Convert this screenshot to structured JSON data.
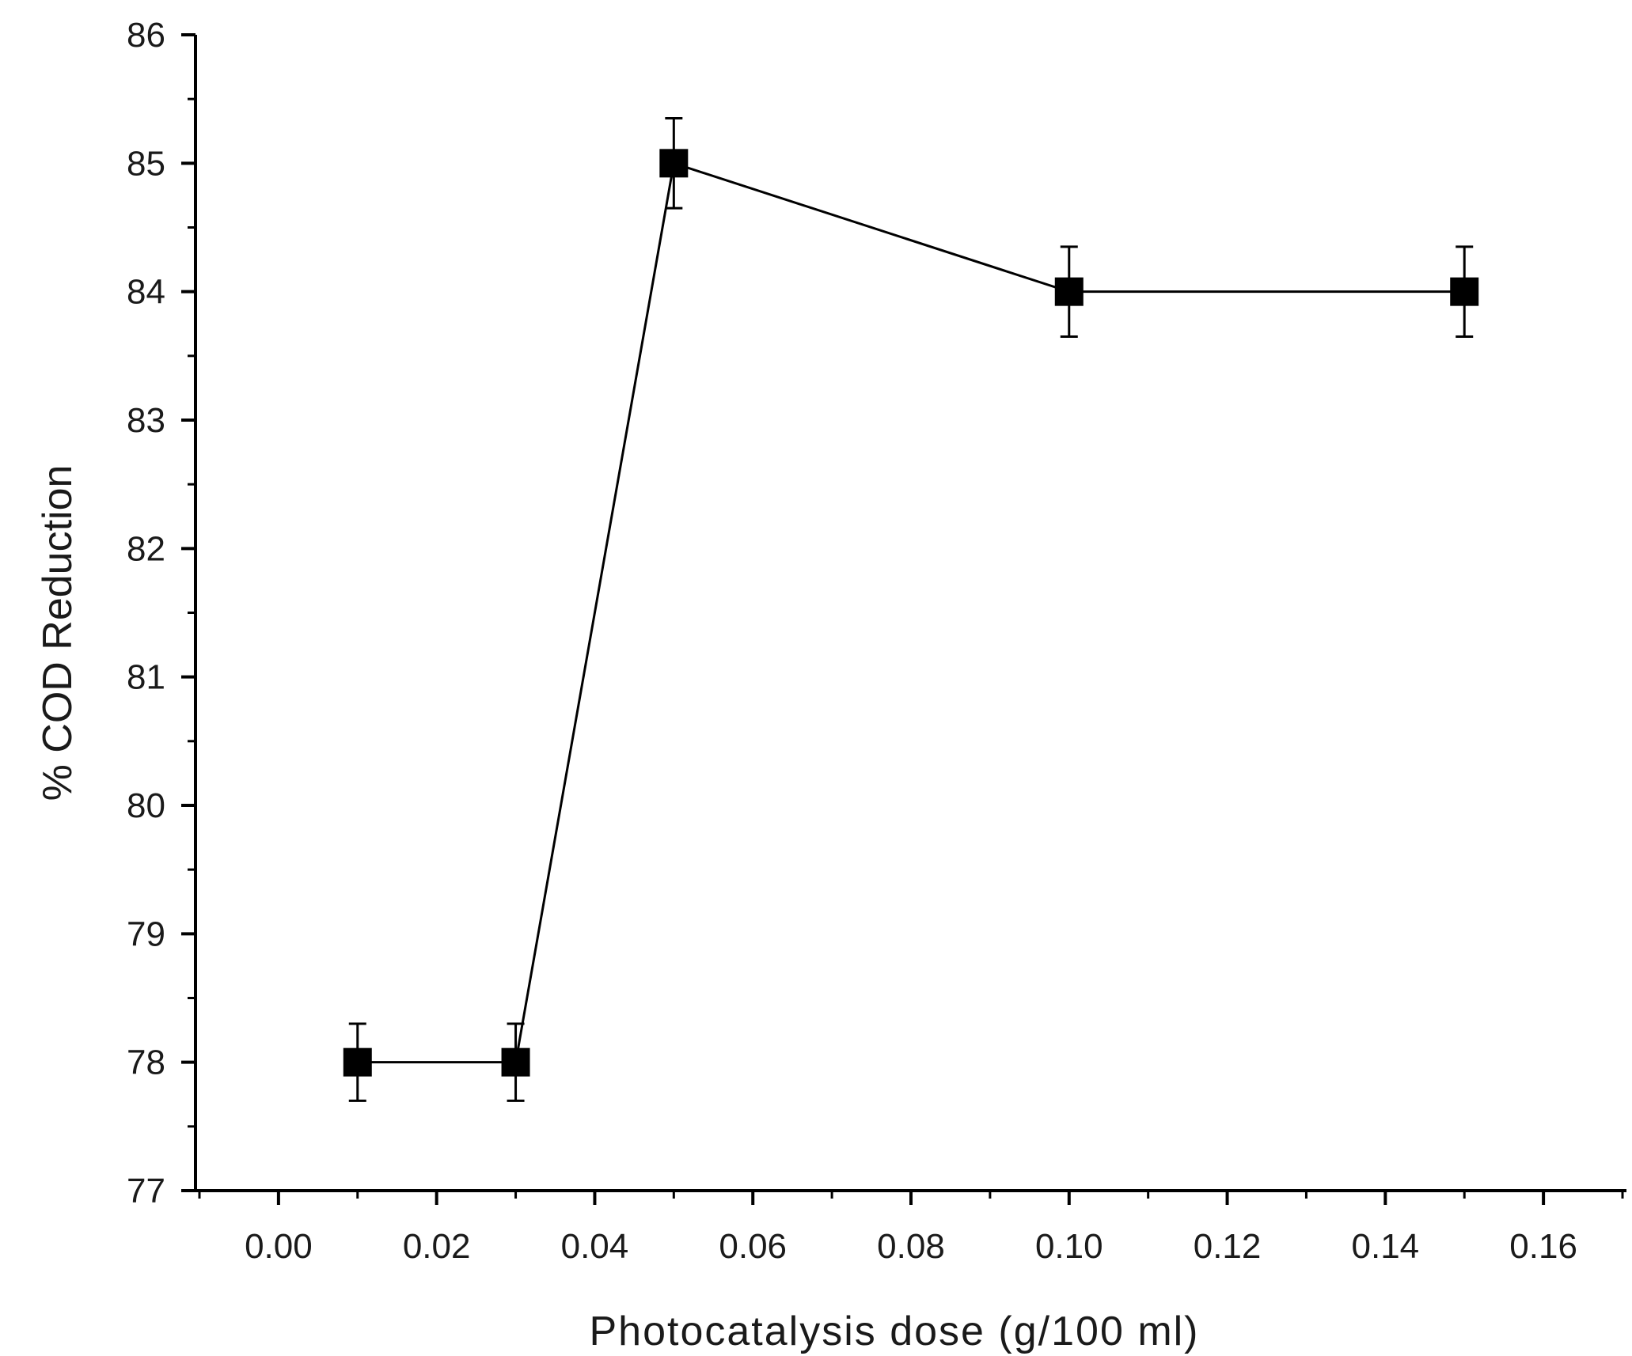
{
  "chart_data": {
    "type": "scatter",
    "title": "",
    "xlabel": "Photocatalysis dose (g/100 ml)",
    "ylabel": "% COD Reduction",
    "xlim": [
      -0.0105,
      0.1705
    ],
    "ylim": [
      77,
      86
    ],
    "x_ticks": [
      "0.00",
      "0.02",
      "0.04",
      "0.06",
      "0.08",
      "0.10",
      "0.12",
      "0.14",
      "0.16"
    ],
    "y_ticks": [
      "77",
      "78",
      "79",
      "80",
      "81",
      "82",
      "83",
      "84",
      "85",
      "86"
    ],
    "x_tick_values": [
      0,
      0.02,
      0.04,
      0.06,
      0.08,
      0.1,
      0.12,
      0.14,
      0.16
    ],
    "y_tick_values": [
      77,
      78,
      79,
      80,
      81,
      82,
      83,
      84,
      85,
      86
    ],
    "grid": false,
    "legend": "none",
    "marker": "filled-square",
    "line": "connected",
    "series": [
      {
        "x": [
          0.01,
          0.03,
          0.05,
          0.1,
          0.15
        ],
        "y": [
          78,
          78,
          85,
          84,
          84
        ],
        "error": [
          0.3,
          0.3,
          0.35,
          0.35,
          0.35
        ]
      }
    ],
    "color": "#000000"
  }
}
